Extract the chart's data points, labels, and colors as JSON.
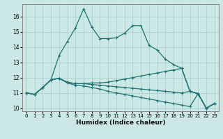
{
  "xlabel": "Humidex (Indice chaleur)",
  "background_color": "#cce8e6",
  "grid_color": "#aacfcd",
  "line_color": "#1e7272",
  "xlim": [
    -0.5,
    23.5
  ],
  "ylim": [
    9.8,
    16.8
  ],
  "yticks": [
    10,
    11,
    12,
    13,
    14,
    15,
    16
  ],
  "xticks": [
    0,
    1,
    2,
    3,
    4,
    5,
    6,
    7,
    8,
    9,
    10,
    11,
    12,
    13,
    14,
    15,
    16,
    17,
    18,
    19,
    20,
    21,
    22,
    23
  ],
  "lines": [
    {
      "x": [
        0,
        1,
        2,
        3,
        4,
        5,
        6,
        7,
        8,
        9,
        10,
        11,
        12,
        13,
        14,
        15,
        16,
        17,
        18,
        19,
        20,
        21,
        22,
        23
      ],
      "y": [
        11.0,
        10.9,
        11.35,
        11.85,
        13.45,
        14.35,
        15.25,
        16.5,
        15.3,
        14.55,
        14.55,
        14.6,
        14.9,
        15.4,
        15.4,
        14.1,
        13.8,
        13.2,
        12.85,
        12.6,
        11.1,
        10.95,
        10.0,
        10.3
      ]
    },
    {
      "x": [
        0,
        1,
        2,
        3,
        4,
        5,
        6,
        7,
        8,
        9,
        10,
        11,
        12,
        13,
        14,
        15,
        16,
        17,
        18,
        19,
        20,
        21,
        22,
        23
      ],
      "y": [
        11.0,
        10.9,
        11.35,
        11.85,
        11.95,
        11.7,
        11.6,
        11.6,
        11.65,
        11.65,
        11.7,
        11.8,
        11.9,
        12.0,
        12.1,
        12.2,
        12.3,
        12.4,
        12.5,
        12.6,
        11.1,
        10.95,
        10.0,
        10.3
      ]
    },
    {
      "x": [
        0,
        1,
        2,
        3,
        4,
        5,
        6,
        7,
        8,
        9,
        10,
        11,
        12,
        13,
        14,
        15,
        16,
        17,
        18,
        19,
        20,
        21,
        22,
        23
      ],
      "y": [
        11.0,
        10.9,
        11.35,
        11.85,
        11.95,
        11.7,
        11.6,
        11.6,
        11.55,
        11.5,
        11.45,
        11.4,
        11.35,
        11.3,
        11.25,
        11.2,
        11.15,
        11.1,
        11.05,
        11.0,
        11.1,
        10.95,
        10.0,
        10.3
      ]
    },
    {
      "x": [
        0,
        1,
        2,
        3,
        4,
        5,
        6,
        7,
        8,
        9,
        10,
        11,
        12,
        13,
        14,
        15,
        16,
        17,
        18,
        19,
        20,
        21,
        22,
        23
      ],
      "y": [
        11.0,
        10.9,
        11.35,
        11.85,
        11.95,
        11.65,
        11.5,
        11.45,
        11.35,
        11.25,
        11.1,
        11.0,
        10.9,
        10.8,
        10.7,
        10.6,
        10.5,
        10.4,
        10.3,
        10.2,
        10.1,
        10.95,
        10.0,
        10.3
      ]
    }
  ]
}
